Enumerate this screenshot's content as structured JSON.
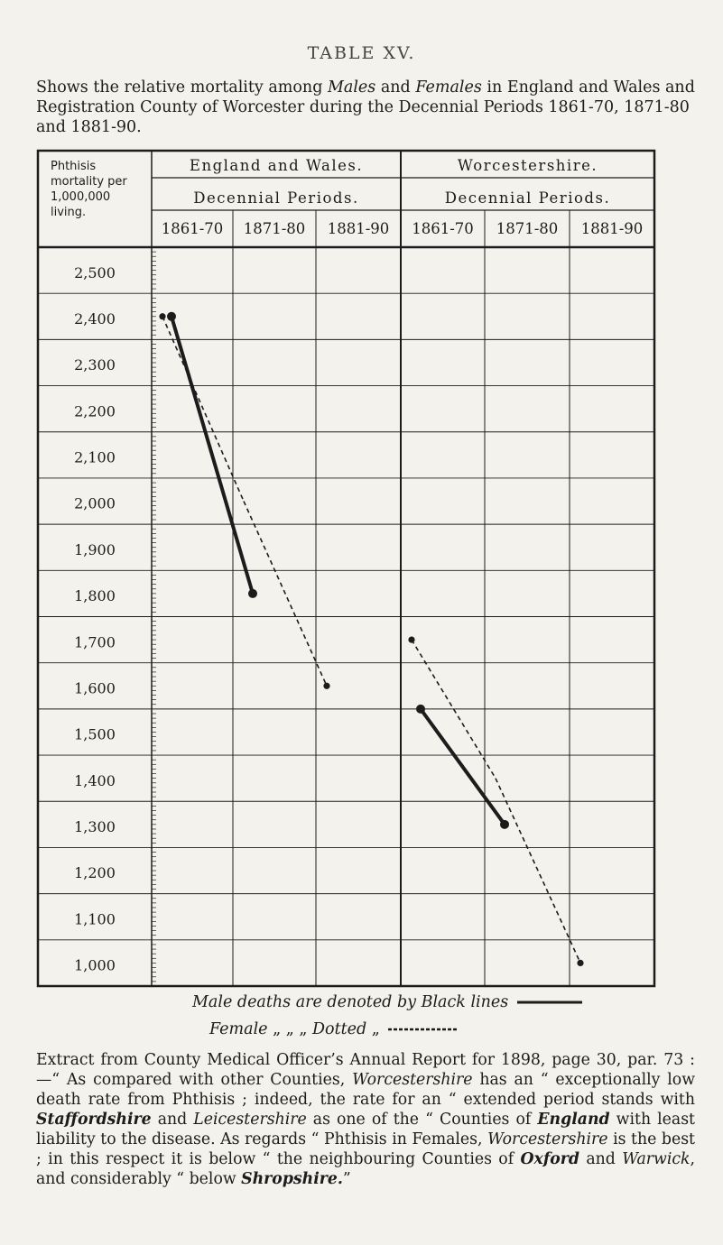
{
  "page": {
    "table_title": "TABLE XV.",
    "description_prefix": "Shows the relative mortality among ",
    "description_males": "Males",
    "description_and": " and ",
    "description_females": "Females",
    "description_suffix": " in England and Wales and Registration County of Worcester during the Decennial Periods 1861-70, 1871-80 and 1881-90."
  },
  "chart_data": {
    "type": "line",
    "row_header": "Phthisis mortality per 1,000,000 living.",
    "groups": [
      {
        "label": "England and Wales.",
        "sublabel": "Decennial Periods."
      },
      {
        "label": "Worcestershire.",
        "sublabel": "Decennial Periods."
      }
    ],
    "columns": [
      "1861-70",
      "1871-80",
      "1881-90",
      "1861-70",
      "1871-80",
      "1881-90"
    ],
    "y_ticks": [
      "2,500",
      "2,400",
      "2,300",
      "2,200",
      "2,100",
      "2,000",
      "1,900",
      "1,800",
      "1,700",
      "1,600",
      "1,500",
      "1,400",
      "1,300",
      "1,200",
      "1,100",
      "1,000"
    ],
    "ylim": [
      1000,
      2500
    ],
    "series": [
      {
        "key": "ew_male",
        "style": "solid",
        "points": [
          [
            0,
            2400
          ],
          [
            1,
            1800
          ]
        ]
      },
      {
        "key": "ew_female",
        "style": "dotted",
        "points": [
          [
            0,
            2400
          ],
          [
            1,
            2000
          ],
          [
            2,
            1600
          ]
        ]
      },
      {
        "key": "wo_male",
        "style": "solid",
        "points": [
          [
            3,
            1550
          ],
          [
            4,
            1300
          ]
        ]
      },
      {
        "key": "wo_female",
        "style": "dotted",
        "points": [
          [
            3,
            1700
          ],
          [
            4,
            1400
          ],
          [
            5,
            1000
          ]
        ]
      }
    ],
    "legend": {
      "male": "Male deaths are denoted by Black lines",
      "female_prefix": "Female",
      "female_ditto": "„     „     „",
      "female_word": "Dotted",
      "female_suffix": "„"
    },
    "colors": {
      "ink": "#1c1c1c",
      "paper": "#f4f2ec"
    }
  },
  "footer": {
    "text_1": "Extract from County Medical Officer’s Annual Report for 1898, page 30, par. 73 :—“ As compared with other Counties, ",
    "worcestershire_1": "Worcestershire",
    "text_2": " has an “ exceptionally low death rate from Phthisis ; indeed, the rate for an “ extended period stands with ",
    "staffordshire": "Staffordshire",
    "text_3": " and ",
    "leicestershire": "Leicestershire",
    "text_4": " as one of the “ Counties of ",
    "england": "England",
    "text_5": " with least liability to the disease.  As regards “ Phthisis in Females, ",
    "worcestershire_2": "Worcestershire",
    "text_6": " is the best ; in this respect it is below “ the neighbouring Counties of ",
    "oxford": "Oxford",
    "text_7": " and ",
    "warwick": "Warwick",
    "text_8": ", and considerably “ below ",
    "shropshire": "Shropshire.",
    "text_9": "”"
  }
}
